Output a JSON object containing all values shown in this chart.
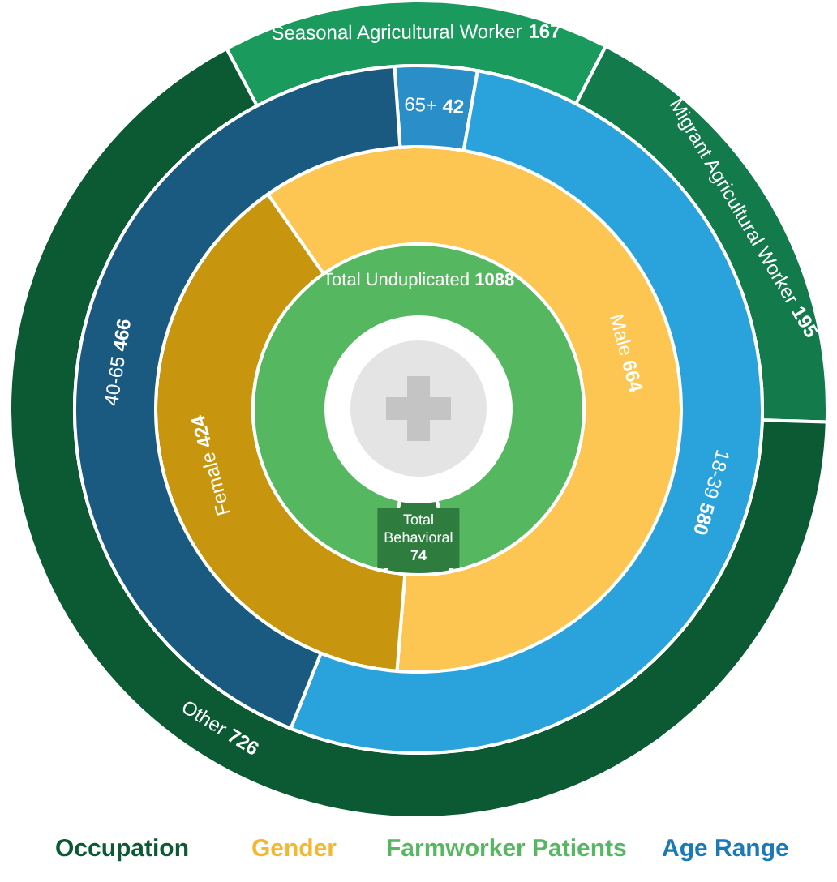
{
  "chart_data": [
    {
      "type": "donut",
      "title": "Occupation",
      "data_labels": true,
      "categories": [
        "Seasonal Agricultural Worker",
        "Migrant Agricultural Worker",
        "Other"
      ],
      "values": [
        167,
        195,
        726
      ],
      "colors": [
        "#1a9a5c",
        "#137a4c",
        "#0b5a34"
      ]
    },
    {
      "type": "donut",
      "title": "Gender",
      "data_labels": true,
      "categories": [
        "Male",
        "Female"
      ],
      "values": [
        664,
        424
      ],
      "colors": [
        "#fdc652",
        "#c8960e"
      ]
    },
    {
      "type": "donut",
      "title": "Farmworker Patients",
      "data_labels": true,
      "categories": [
        "Total Unduplicated",
        "Total Behavioral"
      ],
      "values": [
        1088,
        74
      ],
      "colors": [
        "#55b860",
        "#2e7d3e"
      ]
    },
    {
      "type": "donut",
      "title": "Age Range",
      "data_labels": true,
      "categories": [
        "65+",
        "18-39",
        "40-65"
      ],
      "values": [
        42,
        580,
        466
      ],
      "colors": [
        "#2a8fc8",
        "#2aa3dc",
        "#1a5a80"
      ]
    }
  ]
}
